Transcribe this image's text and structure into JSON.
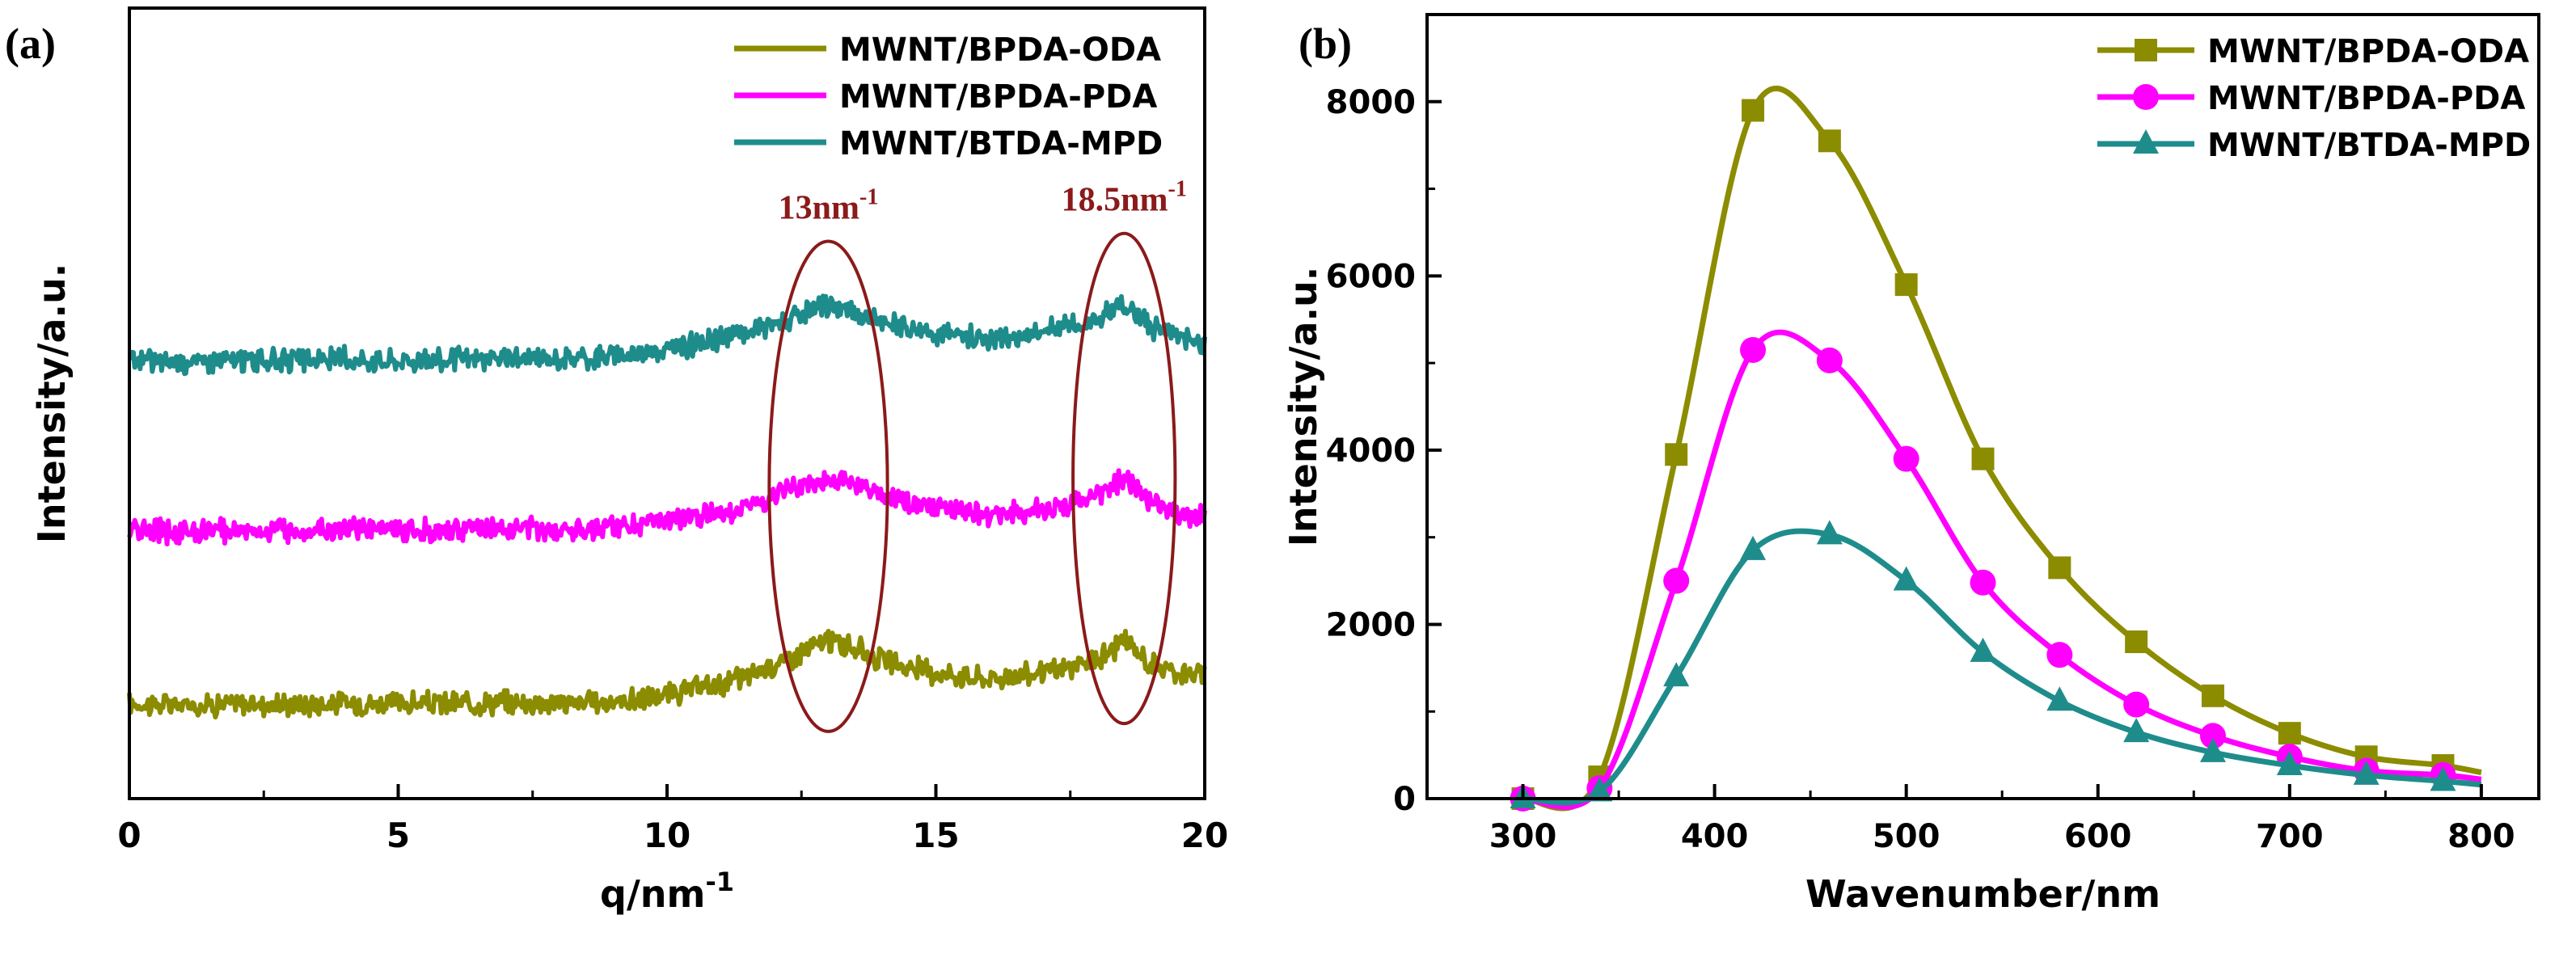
{
  "chart_data": [
    {
      "panel_label": "(a)",
      "type": "line",
      "xlabel": "q/nm",
      "xlabel_sup": "-1",
      "ylabel": "Intensity/a.u.",
      "xlim": [
        0,
        20
      ],
      "ylim": [
        0,
        10
      ],
      "xticks": [
        0,
        5,
        10,
        15,
        20
      ],
      "yticks_shown": false,
      "legend_position": "top-right",
      "colors": {
        "MWNT/BPDA-ODA": "#8c8c00",
        "MWNT/BPDA-PDA": "#ff00ff",
        "MWNT/BTDA-MPD": "#1f8c8c",
        "annotation": "#8b1a1a"
      },
      "series": [
        {
          "name": "MWNT/BPDA-ODA",
          "x": [
            0,
            1,
            2,
            3,
            4,
            5,
            6,
            7,
            8,
            9,
            10,
            10.5,
            11,
            11.5,
            12,
            12.5,
            13,
            13.5,
            14,
            14.5,
            15,
            15.5,
            16,
            16.5,
            17,
            17.5,
            18,
            18.5,
            19,
            19.5,
            20
          ],
          "y": [
            1.2,
            1.18,
            1.2,
            1.19,
            1.21,
            1.2,
            1.2,
            1.22,
            1.21,
            1.22,
            1.3,
            1.38,
            1.45,
            1.55,
            1.7,
            1.85,
            2.0,
            1.9,
            1.75,
            1.65,
            1.6,
            1.55,
            1.52,
            1.55,
            1.6,
            1.65,
            1.75,
            2.0,
            1.7,
            1.6,
            1.55
          ]
        },
        {
          "name": "MWNT/BPDA-PDA",
          "x": [
            0,
            1,
            2,
            3,
            4,
            5,
            6,
            7,
            8,
            9,
            10,
            10.5,
            11,
            11.5,
            12,
            12.5,
            13,
            13.5,
            14,
            14.5,
            15,
            15.5,
            16,
            16.5,
            17,
            17.5,
            18,
            18.5,
            19,
            19.5,
            20
          ],
          "y": [
            3.4,
            3.38,
            3.4,
            3.39,
            3.41,
            3.4,
            3.4,
            3.42,
            3.41,
            3.44,
            3.5,
            3.56,
            3.62,
            3.7,
            3.8,
            3.95,
            4.05,
            3.95,
            3.82,
            3.72,
            3.68,
            3.62,
            3.6,
            3.62,
            3.66,
            3.72,
            3.82,
            4.05,
            3.75,
            3.62,
            3.55
          ]
        },
        {
          "name": "MWNT/BTDA-MPD",
          "x": [
            0,
            1,
            2,
            3,
            4,
            5,
            6,
            7,
            8,
            9,
            10,
            10.5,
            11,
            11.5,
            12,
            12.5,
            13,
            13.5,
            14,
            14.5,
            15,
            15.5,
            16,
            16.5,
            17,
            17.5,
            18,
            18.5,
            19,
            19.5,
            20
          ],
          "y": [
            5.55,
            5.53,
            5.55,
            5.54,
            5.56,
            5.55,
            5.55,
            5.57,
            5.56,
            5.6,
            5.68,
            5.75,
            5.82,
            5.9,
            6.0,
            6.1,
            6.25,
            6.15,
            6.02,
            5.95,
            5.9,
            5.85,
            5.82,
            5.85,
            5.9,
            5.98,
            6.05,
            6.25,
            5.98,
            5.85,
            5.78
          ]
        }
      ],
      "annotations": [
        {
          "text": "13nm",
          "sup": "-1",
          "x_center": 13,
          "x_halfwidth": 1.1,
          "y_center": 3.95,
          "y_halfheight": 3.1
        },
        {
          "text": "18.5nm",
          "sup": "-1",
          "x_center": 18.5,
          "x_halfwidth": 0.95,
          "y_center": 4.05,
          "y_halfheight": 3.1
        }
      ]
    },
    {
      "panel_label": "(b)",
      "type": "line",
      "xlabel": "Wavenumber/nm",
      "ylabel": "Intensity/a.u.",
      "xlim": [
        250,
        830
      ],
      "ylim": [
        0,
        9000
      ],
      "xticks": [
        300,
        400,
        500,
        600,
        700,
        800
      ],
      "yticks": [
        0,
        2000,
        4000,
        6000,
        8000
      ],
      "legend_position": "top-right",
      "colors": {
        "MWNT/BPDA-ODA": "#8c8c00",
        "MWNT/BPDA-PDA": "#ff00ff",
        "MWNT/BTDA-MPD": "#1f8c8c"
      },
      "series": [
        {
          "name": "MWNT/BPDA-ODA",
          "marker": "square",
          "x": [
            300,
            340,
            380,
            420,
            460,
            500,
            540,
            580,
            620,
            660,
            700,
            740,
            780,
            800
          ],
          "y": [
            0,
            250,
            3950,
            7900,
            7550,
            5900,
            3900,
            2650,
            1800,
            1180,
            750,
            480,
            380,
            300
          ],
          "markers_x": [
            300,
            340,
            380,
            420,
            460,
            500,
            540,
            580,
            620,
            660,
            700,
            740,
            780
          ]
        },
        {
          "name": "MWNT/BPDA-PDA",
          "marker": "circle",
          "x": [
            300,
            340,
            380,
            420,
            460,
            500,
            540,
            580,
            620,
            660,
            700,
            740,
            780,
            800
          ],
          "y": [
            0,
            120,
            2500,
            5150,
            5030,
            3900,
            2480,
            1650,
            1080,
            720,
            480,
            320,
            270,
            220
          ],
          "markers_x": [
            300,
            340,
            380,
            420,
            460,
            500,
            540,
            580,
            620,
            660,
            700,
            740,
            780
          ]
        },
        {
          "name": "MWNT/BTDA-MPD",
          "marker": "triangle",
          "x": [
            300,
            340,
            380,
            420,
            460,
            500,
            540,
            580,
            620,
            660,
            700,
            740,
            780,
            800
          ],
          "y": [
            0,
            80,
            1400,
            2850,
            3030,
            2500,
            1680,
            1120,
            760,
            530,
            380,
            270,
            200,
            160
          ],
          "markers_x": [
            300,
            340,
            380,
            420,
            460,
            500,
            540,
            580,
            620,
            660,
            700,
            740,
            780
          ]
        }
      ]
    }
  ]
}
